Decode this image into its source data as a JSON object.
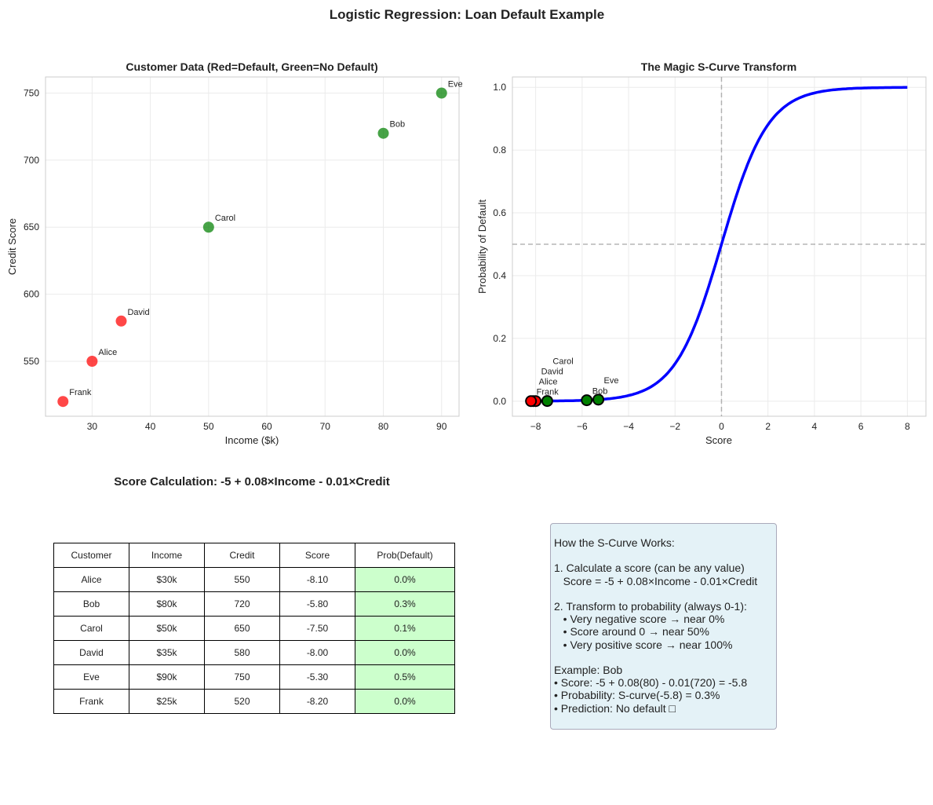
{
  "suptitle": "Logistic Regression: Loan Default Example",
  "colors": {
    "default": "#ff0000",
    "no_default": "#008000",
    "curve": "#0000ff",
    "table_prob_bg": "#ccffcc",
    "box_bg": "#e4f2f7"
  },
  "chart_data": [
    {
      "type": "scatter",
      "title": "Customer Data (Red=Default, Green=No Default)",
      "xlabel": "Income ($k)",
      "ylabel": "Credit Score",
      "xlim": [
        22,
        93
      ],
      "ylim": [
        509,
        762
      ],
      "xticks": [
        30,
        40,
        50,
        60,
        70,
        80,
        90
      ],
      "yticks": [
        550,
        600,
        650,
        700,
        750
      ],
      "grid": true,
      "points": [
        {
          "label": "Alice",
          "x": 30,
          "y": 550,
          "default": true
        },
        {
          "label": "Bob",
          "x": 80,
          "y": 720,
          "default": false
        },
        {
          "label": "Carol",
          "x": 50,
          "y": 650,
          "default": false
        },
        {
          "label": "David",
          "x": 35,
          "y": 580,
          "default": true
        },
        {
          "label": "Eve",
          "x": 90,
          "y": 750,
          "default": false
        },
        {
          "label": "Frank",
          "x": 25,
          "y": 520,
          "default": true
        }
      ]
    },
    {
      "type": "line",
      "title": "The Magic S-Curve Transform",
      "xlabel": "Score",
      "ylabel": "Probability of Default",
      "xlim": [
        -9,
        8.8
      ],
      "ylim": [
        -0.048,
        1.033
      ],
      "xticks": [
        -8,
        -6,
        -4,
        -2,
        0,
        2,
        4,
        6,
        8
      ],
      "yticks": [
        0.0,
        0.2,
        0.4,
        0.6,
        0.8,
        1.0
      ],
      "grid": true,
      "curve": {
        "function": "sigmoid",
        "x_range": [
          -8,
          8
        ]
      },
      "reference_lines": {
        "vertical_x": 0,
        "horizontal_y": 0.5
      },
      "points": [
        {
          "label": "Alice",
          "x": -8.1,
          "y": 0.0003,
          "default": true
        },
        {
          "label": "Bob",
          "x": -5.8,
          "y": 0.003,
          "default": false
        },
        {
          "label": "Carol",
          "x": -7.5,
          "y": 0.0006,
          "default": false
        },
        {
          "label": "David",
          "x": -8.0,
          "y": 0.0003,
          "default": true
        },
        {
          "label": "Eve",
          "x": -5.3,
          "y": 0.005,
          "default": false
        },
        {
          "label": "Frank",
          "x": -8.2,
          "y": 0.0003,
          "default": true
        }
      ]
    },
    {
      "type": "table",
      "title": "Score Calculation: -5 + 0.08×Income - 0.01×Credit",
      "columns": [
        "Customer",
        "Income",
        "Credit",
        "Score",
        "Prob(Default)"
      ],
      "rows": [
        [
          "Alice",
          "$30k",
          "550",
          "-8.10",
          "0.0%"
        ],
        [
          "Bob",
          "$80k",
          "720",
          "-5.80",
          "0.3%"
        ],
        [
          "Carol",
          "$50k",
          "650",
          "-7.50",
          "0.1%"
        ],
        [
          "David",
          "$35k",
          "580",
          "-8.00",
          "0.0%"
        ],
        [
          "Eve",
          "$90k",
          "750",
          "-5.30",
          "0.5%"
        ],
        [
          "Frank",
          "$25k",
          "520",
          "-8.20",
          "0.0%"
        ]
      ]
    }
  ],
  "info_box": "How the S-Curve Works:\n\n1. Calculate a score (can be any value)\n   Score = -5 + 0.08×Income - 0.01×Credit\n\n2. Transform to probability (always 0-1):\n   • Very negative score → near 0%\n   • Score around 0 → near 50%\n   • Very positive score → near 100%\n\nExample: Bob\n• Score: -5 + 0.08(80) - 0.01(720) = -5.8\n• Probability: S-curve(-5.8) = 0.3%\n• Prediction: No default □"
}
